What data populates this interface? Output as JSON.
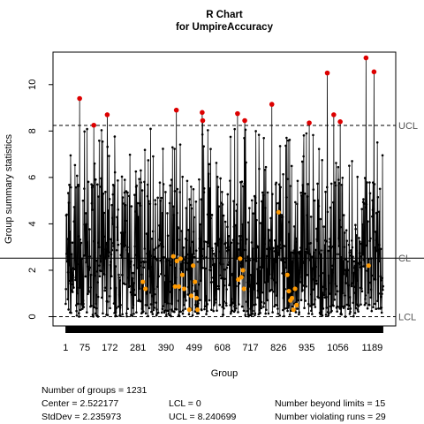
{
  "chart_data": {
    "type": "line",
    "title": "R Chart",
    "subtitle": "for UmpireAccuracy",
    "xlabel": "Group",
    "ylabel": "Group summary statistics",
    "x_range": [
      1,
      1231
    ],
    "ylim": [
      -0.4,
      11.4
    ],
    "x_ticks": [
      1,
      75,
      172,
      281,
      390,
      499,
      608,
      717,
      826,
      935,
      1056,
      1189
    ],
    "y_ticks": [
      0,
      2,
      4,
      6,
      8,
      10
    ],
    "control_lines": {
      "ucl": {
        "label": "UCL",
        "value": 8.240699
      },
      "cl": {
        "label": "CL",
        "value": 2.522177
      },
      "lcl": {
        "label": "LCL",
        "value": 0
      }
    },
    "beyond_limit_points": [
      {
        "x": 55,
        "y": 9.4
      },
      {
        "x": 110,
        "y": 8.25
      },
      {
        "x": 162,
        "y": 8.7
      },
      {
        "x": 430,
        "y": 8.9
      },
      {
        "x": 530,
        "y": 8.8
      },
      {
        "x": 532,
        "y": 8.45
      },
      {
        "x": 667,
        "y": 8.75
      },
      {
        "x": 695,
        "y": 8.45
      },
      {
        "x": 800,
        "y": 9.15
      },
      {
        "x": 945,
        "y": 8.35
      },
      {
        "x": 1015,
        "y": 10.5
      },
      {
        "x": 1040,
        "y": 8.7
      },
      {
        "x": 1065,
        "y": 8.4
      },
      {
        "x": 1165,
        "y": 11.15
      },
      {
        "x": 1196,
        "y": 10.55
      }
    ],
    "violating_run_points": [
      {
        "x": 300,
        "y": 1.5
      },
      {
        "x": 310,
        "y": 1.2
      },
      {
        "x": 418,
        "y": 2.6
      },
      {
        "x": 425,
        "y": 1.3
      },
      {
        "x": 432,
        "y": 2.4
      },
      {
        "x": 440,
        "y": 1.3
      },
      {
        "x": 446,
        "y": 2.5
      },
      {
        "x": 453,
        "y": 1.8
      },
      {
        "x": 460,
        "y": 1.2
      },
      {
        "x": 480,
        "y": 0.3
      },
      {
        "x": 488,
        "y": 0.9
      },
      {
        "x": 495,
        "y": 2.2
      },
      {
        "x": 502,
        "y": 1.5
      },
      {
        "x": 508,
        "y": 0.8
      },
      {
        "x": 512,
        "y": 0.3
      },
      {
        "x": 670,
        "y": 1.6
      },
      {
        "x": 677,
        "y": 2.5
      },
      {
        "x": 682,
        "y": 1.7
      },
      {
        "x": 688,
        "y": 2.0
      },
      {
        "x": 692,
        "y": 1.2
      },
      {
        "x": 826,
        "y": 4.5
      },
      {
        "x": 860,
        "y": 1.8
      },
      {
        "x": 866,
        "y": 1.1
      },
      {
        "x": 872,
        "y": 0.7
      },
      {
        "x": 878,
        "y": 0.8
      },
      {
        "x": 884,
        "y": 0.3
      },
      {
        "x": 890,
        "y": 1.2
      },
      {
        "x": 896,
        "y": 0.5
      },
      {
        "x": 1175,
        "y": 2.2
      }
    ],
    "series_description_points": 1231,
    "colors": {
      "series": "#000000",
      "beyond_limits": "#dd0000",
      "violating_runs": "#ff9900",
      "limits": "#000000",
      "label_gray": "#555555"
    }
  },
  "stats": {
    "groups": "Number of groups = 1231",
    "center": "Center = 2.522177",
    "stddev": "StdDev = 2.235973",
    "lcl": "LCL = 0",
    "ucl": "UCL = 8.240699",
    "beyond": "Number beyond limits = 15",
    "runs": "Number violating runs = 29"
  }
}
